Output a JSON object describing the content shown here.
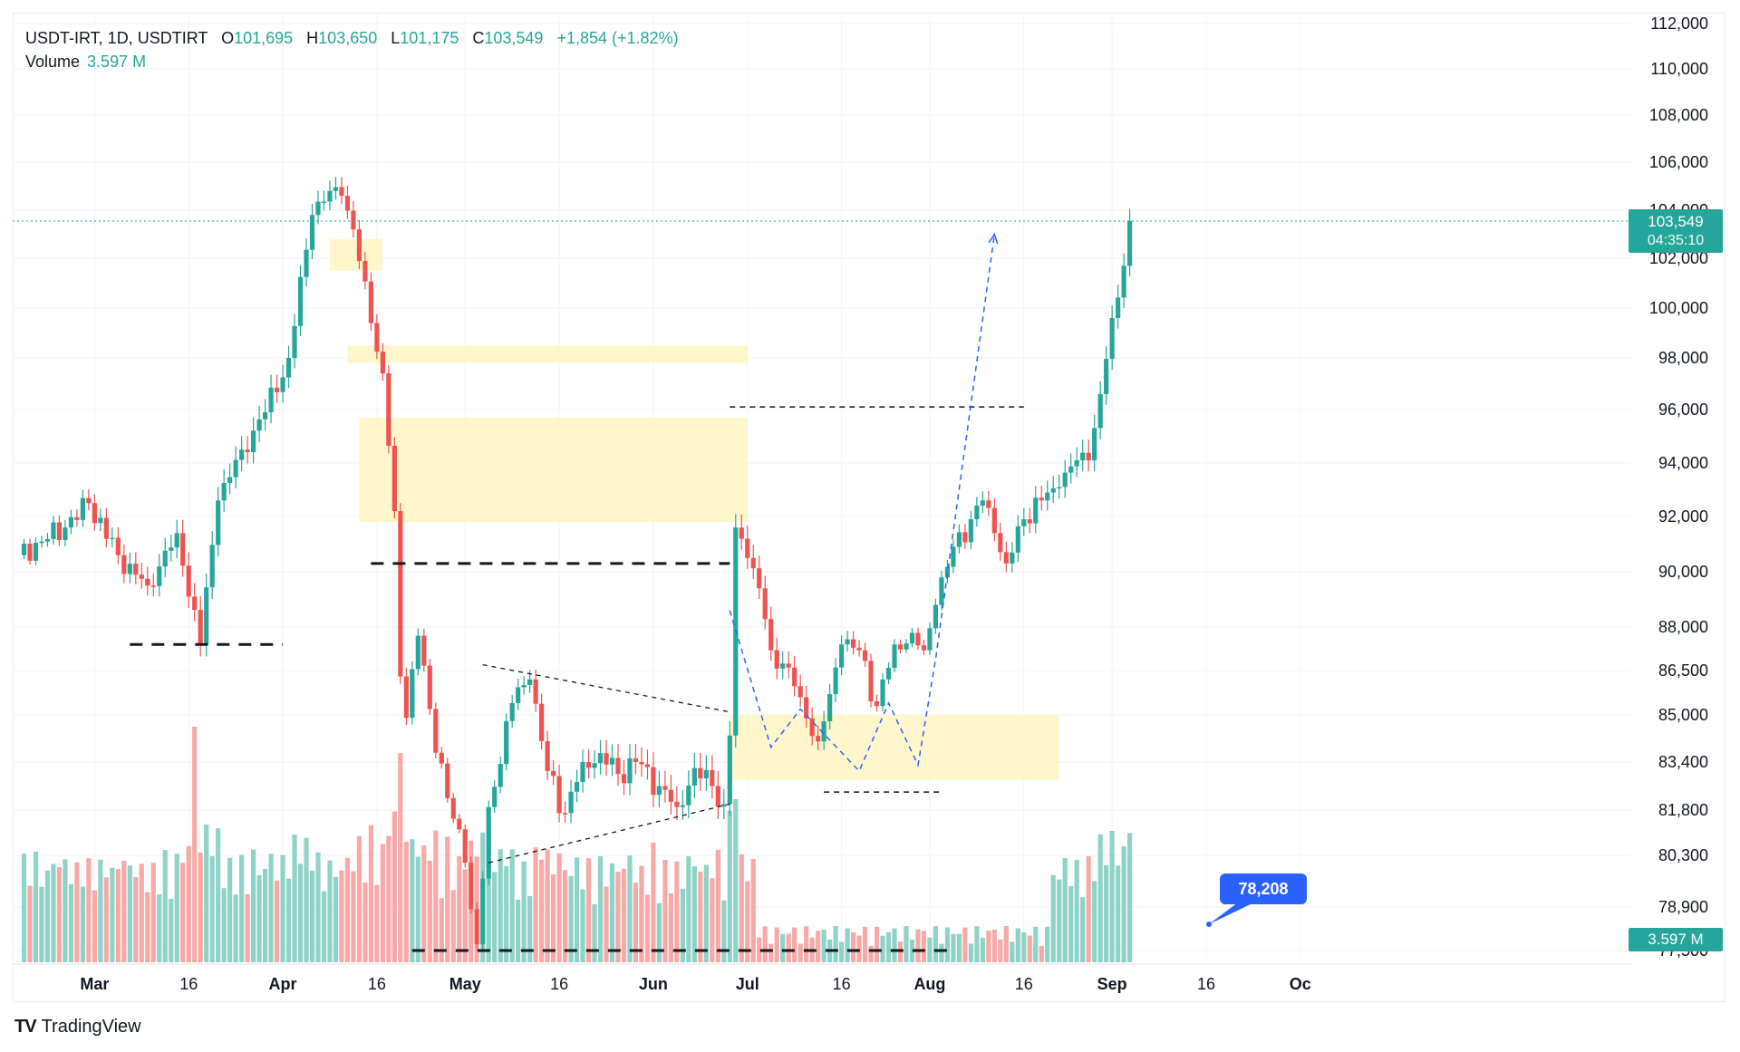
{
  "legend": {
    "symbol": "USDT-IRT, 1D, USDTIRT",
    "open_label": "O",
    "open": "101,695",
    "high_label": "H",
    "high": "103,650",
    "low_label": "L",
    "low": "101,175",
    "close_label": "C",
    "close": "103,549",
    "change": "+1,854 (+1.82%)",
    "volume_label": "Volume",
    "volume_value": "3.597 M"
  },
  "price_tag": {
    "price": "103,549",
    "countdown": "04:35:10"
  },
  "volume_tag": "3.597 M",
  "note": "78,208",
  "brand": "TradingView",
  "colors": {
    "up": "#26a69a",
    "down": "#ef5350",
    "zone": "#fff6c2",
    "projection": "#2962ff"
  },
  "chart_data": {
    "type": "candlestick",
    "x_tick_labels": [
      "Mar",
      "16",
      "Apr",
      "16",
      "May",
      "16",
      "Jun",
      "Jul",
      "16",
      "Aug",
      "16",
      "Sep",
      "16",
      "Oc"
    ],
    "y_tick_labels": [
      "112,000",
      "110,000",
      "108,000",
      "106,000",
      "104,000",
      "102,000",
      "100,000",
      "98,000",
      "96,000",
      "94,000",
      "92,000",
      "90,000",
      "88,000",
      "86,500",
      "85,000",
      "83,400",
      "81,800",
      "80,300",
      "78,900",
      "77,500"
    ],
    "last_price": 103549,
    "anchors": [
      {
        "day": 0,
        "close": 90600
      },
      {
        "day": 8,
        "close": 91600
      },
      {
        "day": 12,
        "close": 92500
      },
      {
        "day": 17,
        "close": 90600
      },
      {
        "day": 22,
        "close": 89500
      },
      {
        "day": 27,
        "close": 91400
      },
      {
        "day": 31,
        "close": 87400
      },
      {
        "day": 34,
        "close": 92600
      },
      {
        "day": 38,
        "close": 94500
      },
      {
        "day": 42,
        "close": 95900
      },
      {
        "day": 46,
        "close": 98000
      },
      {
        "day": 50,
        "close": 103800
      },
      {
        "day": 53,
        "close": 104800
      },
      {
        "day": 55,
        "close": 104600
      },
      {
        "day": 57,
        "close": 103200
      },
      {
        "day": 60,
        "close": 99400
      },
      {
        "day": 62,
        "close": 97400
      },
      {
        "day": 64,
        "close": 92200
      },
      {
        "day": 65,
        "close": 86300
      },
      {
        "day": 66,
        "close": 84900
      },
      {
        "day": 68,
        "close": 87700
      },
      {
        "day": 70,
        "close": 85200
      },
      {
        "day": 73,
        "close": 82200
      },
      {
        "day": 76,
        "close": 80100
      },
      {
        "day": 78,
        "close": 77700
      },
      {
        "day": 80,
        "close": 81900
      },
      {
        "day": 84,
        "close": 85400
      },
      {
        "day": 87,
        "close": 86200
      },
      {
        "day": 90,
        "close": 83100
      },
      {
        "day": 93,
        "close": 81700
      },
      {
        "day": 96,
        "close": 83400
      },
      {
        "day": 99,
        "close": 83700
      },
      {
        "day": 102,
        "close": 83000
      },
      {
        "day": 105,
        "close": 83400
      },
      {
        "day": 109,
        "close": 82600
      },
      {
        "day": 112,
        "close": 81900
      },
      {
        "day": 115,
        "close": 83200
      },
      {
        "day": 118,
        "close": 82600
      },
      {
        "day": 120,
        "close": 82000
      },
      {
        "day": 121,
        "close": 84300
      },
      {
        "day": 122,
        "close": 91600
      },
      {
        "day": 124,
        "close": 90500
      },
      {
        "day": 126,
        "close": 89400
      },
      {
        "day": 128,
        "close": 87200
      },
      {
        "day": 131,
        "close": 86600
      },
      {
        "day": 133,
        "close": 85600
      },
      {
        "day": 136,
        "close": 84100
      },
      {
        "day": 138,
        "close": 85700
      },
      {
        "day": 140,
        "close": 87400
      },
      {
        "day": 143,
        "close": 87200
      },
      {
        "day": 146,
        "close": 85300
      },
      {
        "day": 149,
        "close": 87400
      },
      {
        "day": 152,
        "close": 87800
      },
      {
        "day": 154,
        "close": 87200
      },
      {
        "day": 156,
        "close": 88800
      },
      {
        "day": 159,
        "close": 90900
      },
      {
        "day": 162,
        "close": 91900
      },
      {
        "day": 164,
        "close": 92600
      },
      {
        "day": 166,
        "close": 91400
      },
      {
        "day": 168,
        "close": 90300
      },
      {
        "day": 171,
        "close": 91900
      },
      {
        "day": 174,
        "close": 92600
      },
      {
        "day": 177,
        "close": 93100
      },
      {
        "day": 180,
        "close": 94100
      },
      {
        "day": 182,
        "close": 94100
      },
      {
        "day": 184,
        "close": 96600
      },
      {
        "day": 186,
        "close": 99600
      },
      {
        "day": 188,
        "close": 101700
      },
      {
        "day": 189,
        "close": 103549
      }
    ],
    "annotations": [
      {
        "type": "horizontal-dashed",
        "start_day": 19,
        "end_day": 45,
        "price": 87400
      },
      {
        "type": "horizontal-dashed",
        "start_day": 60,
        "end_day": 121,
        "price": 90300
      },
      {
        "type": "horizontal-dashed",
        "start_day": 121,
        "end_day": 171,
        "price": 96100
      },
      {
        "type": "horizontal-dashed",
        "start_day": 67,
        "end_day": 158,
        "price": 77500
      },
      {
        "type": "horizontal-dashed",
        "start_day": 137,
        "end_day": 157,
        "price": 82400
      },
      {
        "type": "zone",
        "start_day": 53,
        "end_day": 62,
        "high": 102800,
        "low": 101500
      },
      {
        "type": "zone",
        "start_day": 56,
        "end_day": 124,
        "high": 98500,
        "low": 97800
      },
      {
        "type": "zone",
        "start_day": 58,
        "end_day": 124,
        "high": 95700,
        "low": 91800
      },
      {
        "type": "zone",
        "start_day": 121,
        "end_day": 177,
        "high": 85000,
        "low": 82800
      },
      {
        "type": "triangle-upper",
        "from": [
          79,
          86700
        ],
        "to": [
          121,
          85100
        ]
      },
      {
        "type": "triangle-lower",
        "from": [
          80,
          80100
        ],
        "to": [
          121,
          82000
        ]
      },
      {
        "type": "projection",
        "points": [
          [
            121,
            88600
          ],
          [
            128,
            83900
          ],
          [
            133,
            85200
          ],
          [
            143,
            83100
          ],
          [
            148,
            85400
          ],
          [
            153,
            83300
          ],
          [
            156,
            86900
          ],
          [
            166,
            103000
          ]
        ]
      }
    ]
  }
}
